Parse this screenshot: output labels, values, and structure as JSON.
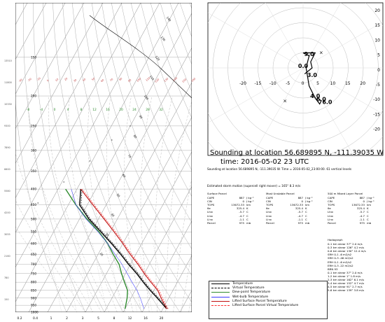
{
  "skewt": {
    "pressure_labels": [
      "150",
      "200",
      "250",
      "300",
      "350",
      "400",
      "450",
      "500",
      "550",
      "600",
      "650",
      "700",
      "750",
      "800",
      "850",
      "900",
      "950",
      "1000"
    ],
    "height_labels": [
      "13510",
      "11800",
      "10330",
      "9300",
      "7890",
      "6600",
      "5580",
      "4200",
      "3055",
      "2160",
      "780",
      "150"
    ],
    "mixing_ratio_labels": [
      "0.2",
      "0.4",
      "1",
      "2",
      "3",
      "5",
      "8",
      "12",
      "16",
      "20"
    ],
    "dry_adiabat_labels": [
      "-30",
      "-20",
      "-10",
      "0",
      "10",
      "20",
      "30",
      "40",
      "50",
      "60",
      "70",
      "80",
      "90",
      "100",
      "110",
      "120",
      "130",
      "140",
      "150",
      "160"
    ],
    "green_labels": [
      "-8",
      "-4",
      "0",
      "4",
      "8",
      "12",
      "16",
      "20",
      "24",
      "28",
      "32"
    ],
    "thermo_labels": [
      "140",
      "130",
      "120",
      "110",
      "100",
      "90",
      "80",
      "70",
      "60",
      "50",
      "40",
      "30",
      "20"
    ],
    "colors": {
      "temperature": "#202020",
      "virtual_temperature": "#101010",
      "dewpoint": "#2e8b2e",
      "wetbulb": "#5050ff",
      "parcel": "#c01010",
      "parcel_virtual": "#ff3030",
      "isotherm": "#888888",
      "dry_adiabat": "#b0b0b0",
      "moist_adiabat": "#c0c0c0",
      "mixing_ratio": "#d0d0d0"
    }
  },
  "hodograph": {
    "ticks": [
      "20",
      "15",
      "10",
      "5",
      "0",
      "-5",
      "-10",
      "-15",
      "-20"
    ],
    "xticks": [
      "-20",
      "-15",
      "-10",
      "-5",
      "0",
      "5",
      "10",
      "15",
      "20"
    ],
    "height_labels": [
      "9.0",
      "0.0",
      "3.0",
      "4.0",
      "6.0",
      "6.0"
    ]
  },
  "location_title": "Sounding at location 56.689895 N, -111.39035 W",
  "time_title": "time: 2016-05-02  23 UTC",
  "subline": "Sounding at location 56.689895 N, -111.39035 W. Time = 2016-05-02_23:00:00. 61 vertical levels",
  "storm_motion": "Estimated storm motion (supercell right mover) = 165° 8.3 m/s",
  "parcels": [
    {
      "header": "Surface Parcel",
      "rows": [
        [
          "CAPE",
          "887",
          "J kg⁻¹"
        ],
        [
          "CIN",
          "0",
          "J kg⁻¹"
        ],
        [
          "TOPS",
          "13672.33",
          "km"
        ],
        [
          "θe",
          "325.4",
          "K"
        ],
        [
          "LI₅₀₀",
          "-5.7",
          "C"
        ],
        [
          "LI₃₀₀",
          "-4.7",
          "C"
        ],
        [
          "LI₇₀₀",
          "-1.1",
          "C"
        ],
        [
          "Parcel",
          "975",
          "mb"
        ]
      ]
    },
    {
      "header": "Most Unstable Parcel",
      "rows": [
        [
          "CAPE",
          "887",
          "J kg⁻¹"
        ],
        [
          "CIN",
          "0",
          "J kg⁻¹"
        ],
        [
          "TOPS",
          "13672.33",
          "km"
        ],
        [
          "θe",
          "325.4",
          "K"
        ],
        [
          "LI₅₀₀",
          "-5.7",
          "C"
        ],
        [
          "LI₃₀₀",
          "-4.7",
          "C"
        ],
        [
          "LI₇₀₀",
          "-1.1",
          "C"
        ],
        [
          "Parcel",
          "975",
          "mb"
        ]
      ]
    },
    {
      "header": "500 m Mixed Layer Parcel",
      "rows": [
        [
          "CAPE",
          "887",
          "J kg⁻¹"
        ],
        [
          "CIN",
          "0",
          "J kg⁻¹"
        ],
        [
          "TOPS",
          "13672.33",
          "km"
        ],
        [
          "θe",
          "325.4",
          "K"
        ],
        [
          "LI₅₀₀",
          "-5.7",
          "C"
        ],
        [
          "LI₃₀₀",
          "-4.7",
          "C"
        ],
        [
          "LI₇₀₀",
          "-1.1",
          "C"
        ],
        [
          "Parcel",
          "975",
          "mb"
        ]
      ]
    }
  ],
  "hodo_table": {
    "header": "Hodograph",
    "rows": [
      "0-1 km shear  37° 2.0 m/s",
      "0-3 km shear 126° 4.2 m/s",
      "0-6 km shear 130° 12.4 m/s",
      "SRH 0-1 -6 m2/s2",
      "SRH 0-3 -46 m2/s2",
      "ERH 0-1 -6 m2/s2",
      "ERH 0-3 -22 m2/s2",
      "BRN 93",
      "0-1 km shear  37° 2.0 m/s",
      "1-2 km shear   1° 1.8 m/s",
      "2-3 km shear 162° 6.1 m/s",
      "3-4 km shear 152° 4.7 m/s",
      "4-5 km shear  91° 2.7 m/s",
      "5-6 km shear 139° 3.8 m/s"
    ]
  },
  "legend": [
    {
      "label": "Temperature",
      "color": "#000000",
      "style": "solid"
    },
    {
      "label": "Virtual Temperature",
      "color": "#000000",
      "style": "dashed"
    },
    {
      "label": "Dew-point Temperature",
      "color": "#2e8b2e",
      "style": "solid"
    },
    {
      "label": "Wet-bulb Temperature",
      "color": "#3a3aff",
      "style": "solid"
    },
    {
      "label": "Lifted Surface Parcel Temperature",
      "color": "#c01010",
      "style": "solid"
    },
    {
      "label": "Lifted Surface Parcel Virtual Temperature",
      "color": "#ff3030",
      "style": "dashed"
    }
  ],
  "chart_data": [
    {
      "type": "line",
      "title": "",
      "xlabel": "Temperature (°C)",
      "ylabel": "Pressure (hPa)",
      "y_scale": "log-pressure (skew-T)",
      "ylim": [
        1000,
        100
      ],
      "series": [
        {
          "name": "Temperature",
          "x": [
            22,
            14,
            8,
            2,
            -4,
            -11,
            -18,
            -26,
            -35,
            -45,
            -54,
            -58
          ],
          "y": [
            975,
            900,
            850,
            800,
            750,
            700,
            650,
            600,
            550,
            500,
            450,
            400
          ]
        },
        {
          "name": "Dew-point Temperature",
          "x": [
            0,
            -2,
            -4,
            -8,
            -12,
            -16,
            -22,
            -28,
            -36,
            -46,
            -56,
            -66
          ],
          "y": [
            975,
            900,
            850,
            800,
            750,
            700,
            650,
            600,
            550,
            500,
            450,
            400
          ]
        },
        {
          "name": "Lifted Surface Parcel Temperature",
          "x": [
            22,
            16,
            12,
            6,
            0,
            -6,
            -13,
            -20,
            -28,
            -37,
            -47,
            -58
          ],
          "y": [
            975,
            900,
            850,
            800,
            750,
            700,
            650,
            600,
            550,
            500,
            450,
            400
          ]
        }
      ]
    },
    {
      "type": "line",
      "title": "",
      "xlim": [
        -20,
        20
      ],
      "ylim": [
        -20,
        20
      ],
      "series": [
        {
          "name": "Hodograph",
          "x": [
            0.5,
            3,
            2.5,
            4,
            0,
            2,
            1,
            2,
            4,
            5.5,
            6,
            5
          ],
          "y": [
            -2,
            0,
            2,
            5,
            5,
            4,
            0,
            -6,
            -10,
            -12,
            -11,
            -10
          ]
        }
      ],
      "markers": [
        {
          "x": 6,
          "y": 5
        },
        {
          "x": -6,
          "y": -11
        }
      ]
    }
  ]
}
